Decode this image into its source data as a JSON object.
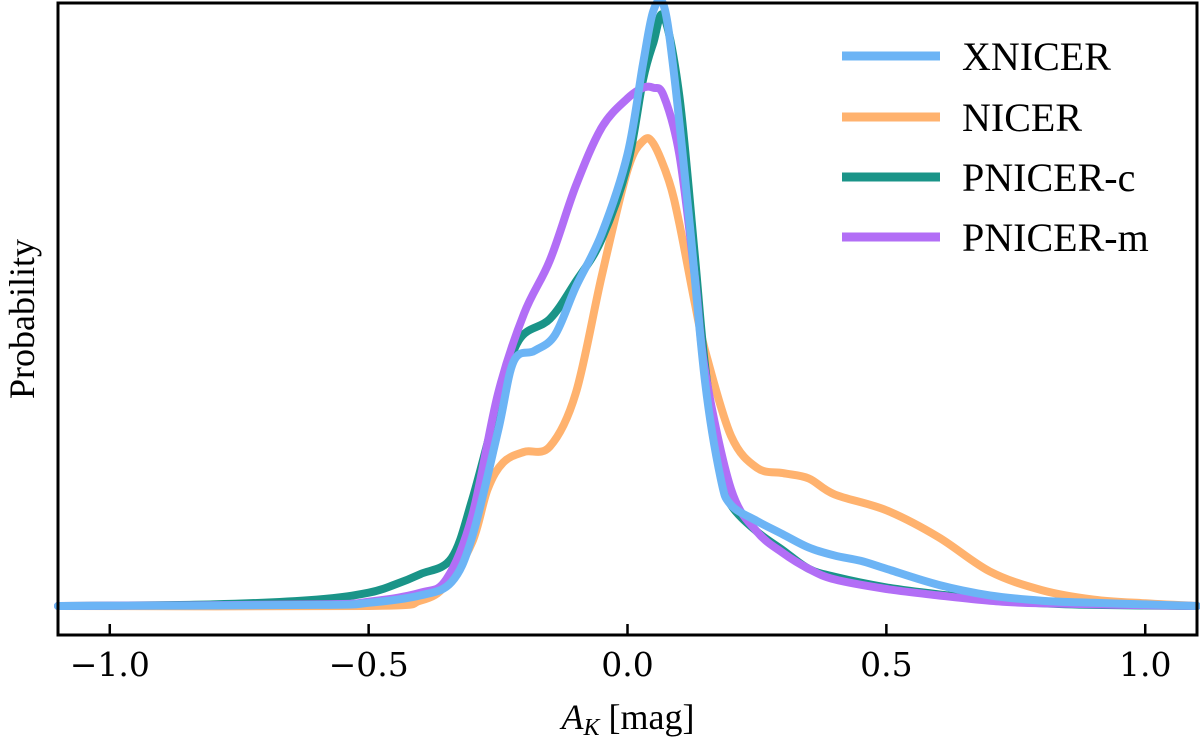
{
  "chart_data": {
    "type": "line",
    "title": "",
    "xlabel_main": "A",
    "xlabel_sub": "K",
    "xlabel_unit": " [mag]",
    "ylabel": "Probability",
    "xlim": [
      -1.1,
      1.1
    ],
    "ylim": [
      0,
      1.08
    ],
    "xticks": [
      -1.0,
      -0.5,
      0.0,
      0.5,
      1.0
    ],
    "xtick_labels": [
      "−1.0",
      "−0.5",
      "0.0",
      "0.5",
      "1.0"
    ],
    "legend_position": "top-right",
    "series": [
      {
        "name": "NICER",
        "color": "#ffb26e",
        "x": [
          -1.1,
          -0.5,
          -0.4,
          -0.35,
          -0.3,
          -0.27,
          -0.24,
          -0.2,
          -0.15,
          -0.1,
          -0.05,
          0.0,
          0.03,
          0.05,
          0.08,
          0.1,
          0.13,
          0.15,
          0.2,
          0.25,
          0.3,
          0.35,
          0.4,
          0.5,
          0.6,
          0.7,
          0.8,
          0.9,
          1.0,
          1.1
        ],
        "y": [
          0.0,
          0.0,
          0.01,
          0.04,
          0.12,
          0.22,
          0.27,
          0.29,
          0.3,
          0.4,
          0.62,
          0.82,
          0.875,
          0.87,
          0.8,
          0.72,
          0.57,
          0.48,
          0.32,
          0.26,
          0.25,
          0.24,
          0.21,
          0.18,
          0.13,
          0.065,
          0.03,
          0.012,
          0.005,
          0.0
        ]
      },
      {
        "name": "PNICER-c",
        "color": "#1a9488",
        "x": [
          -1.1,
          -0.8,
          -0.6,
          -0.5,
          -0.45,
          -0.4,
          -0.34,
          -0.3,
          -0.25,
          -0.21,
          -0.15,
          -0.1,
          -0.05,
          0.0,
          0.03,
          0.05,
          0.07,
          0.1,
          0.13,
          0.15,
          0.18,
          0.2,
          0.25,
          0.3,
          0.35,
          0.4,
          0.5,
          0.6,
          0.7,
          0.8,
          0.9,
          1.1
        ],
        "y": [
          0.0,
          0.003,
          0.012,
          0.025,
          0.04,
          0.06,
          0.09,
          0.2,
          0.38,
          0.5,
          0.54,
          0.61,
          0.69,
          0.83,
          0.99,
          1.06,
          1.11,
          0.96,
          0.66,
          0.45,
          0.25,
          0.19,
          0.14,
          0.105,
          0.07,
          0.055,
          0.035,
          0.022,
          0.012,
          0.005,
          0.002,
          0.0
        ]
      },
      {
        "name": "PNICER-m",
        "color": "#b26ef6",
        "x": [
          -1.1,
          -0.6,
          -0.5,
          -0.4,
          -0.35,
          -0.3,
          -0.25,
          -0.2,
          -0.15,
          -0.1,
          -0.05,
          0.0,
          0.03,
          0.05,
          0.07,
          0.1,
          0.13,
          0.15,
          0.2,
          0.25,
          0.3,
          0.35,
          0.4,
          0.5,
          0.6,
          0.7,
          0.8,
          1.1
        ],
        "y": [
          0.0,
          0.003,
          0.008,
          0.025,
          0.05,
          0.17,
          0.4,
          0.55,
          0.65,
          0.79,
          0.9,
          0.955,
          0.975,
          0.975,
          0.96,
          0.85,
          0.62,
          0.44,
          0.22,
          0.14,
          0.1,
          0.07,
          0.05,
          0.032,
          0.02,
          0.01,
          0.005,
          0.0
        ]
      },
      {
        "name": "XNICER",
        "color": "#6cb4f5",
        "x": [
          -1.1,
          -0.6,
          -0.5,
          -0.4,
          -0.34,
          -0.3,
          -0.25,
          -0.22,
          -0.18,
          -0.14,
          -0.1,
          -0.05,
          0.0,
          0.03,
          0.05,
          0.07,
          0.09,
          0.12,
          0.15,
          0.18,
          0.2,
          0.25,
          0.3,
          0.35,
          0.4,
          0.45,
          0.5,
          0.6,
          0.7,
          0.8,
          0.9,
          1.0,
          1.1
        ],
        "y": [
          0.0,
          0.002,
          0.006,
          0.02,
          0.045,
          0.13,
          0.33,
          0.46,
          0.48,
          0.51,
          0.6,
          0.7,
          0.85,
          1.02,
          1.12,
          1.13,
          1.0,
          0.72,
          0.42,
          0.24,
          0.19,
          0.16,
          0.135,
          0.11,
          0.095,
          0.085,
          0.07,
          0.04,
          0.02,
          0.01,
          0.006,
          0.003,
          0.0
        ]
      }
    ]
  },
  "legend": {
    "items": [
      {
        "label": "XNICER",
        "color": "#6cb4f5"
      },
      {
        "label": "NICER",
        "color": "#ffb26e"
      },
      {
        "label": "PNICER-c",
        "color": "#1a9488"
      },
      {
        "label": "PNICER-m",
        "color": "#b26ef6"
      }
    ]
  }
}
